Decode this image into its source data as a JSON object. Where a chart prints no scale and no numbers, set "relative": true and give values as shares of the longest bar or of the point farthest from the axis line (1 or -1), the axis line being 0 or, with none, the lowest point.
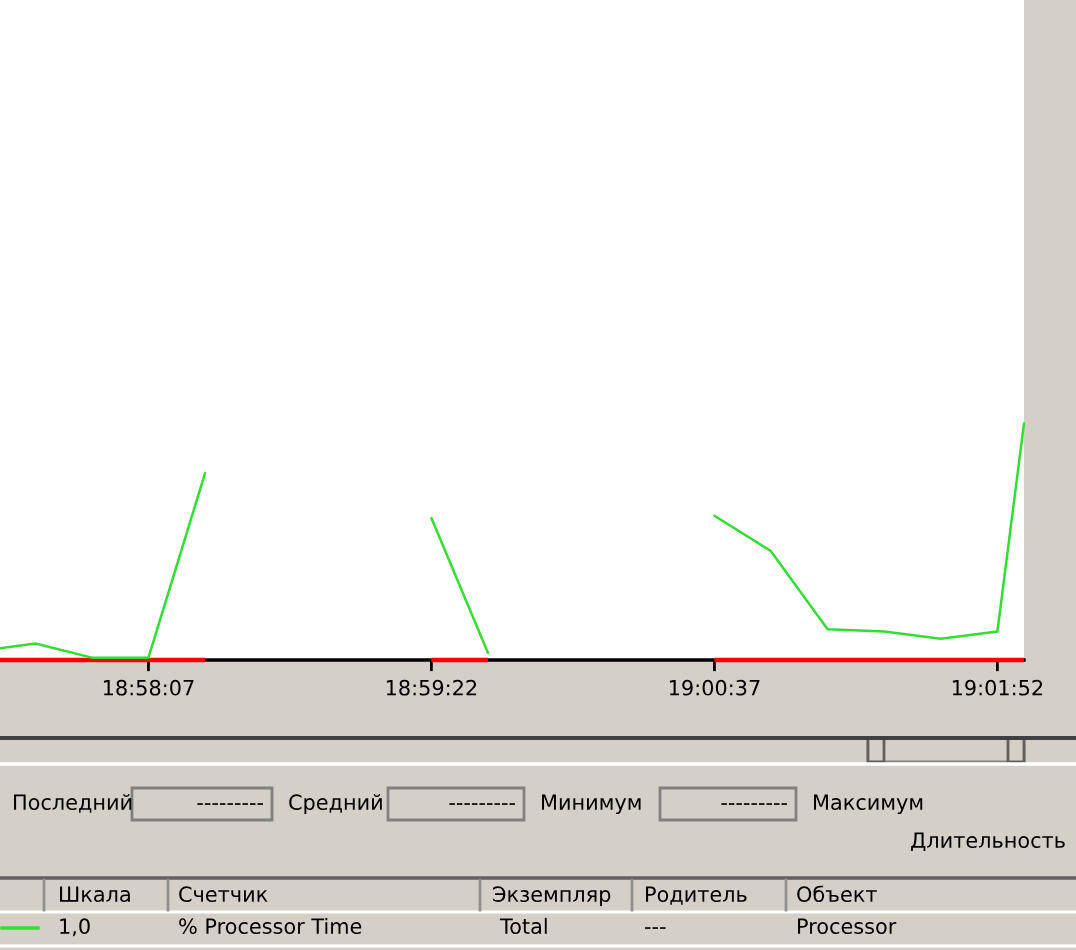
{
  "chart_data": {
    "type": "line",
    "x": [
      18.95768,
      18.96028,
      18.96444,
      18.96861,
      18.97278,
      18.97694,
      18.98111,
      18.98528,
      18.98944,
      18.99361,
      18.99778,
      19.00194,
      19.00611,
      19.01028,
      19.01444,
      19.01861,
      19.02278,
      19.02694,
      19.03111,
      19.03307
    ],
    "series": [
      {
        "name": "% Processor Time",
        "color": "#33dd33",
        "values": [
          0.05,
          0.07,
          0.01,
          0.01,
          0.79,
          null,
          null,
          null,
          0.6,
          0.03,
          null,
          null,
          null,
          0.61,
          0.46,
          0.13,
          0.12,
          0.09,
          0.12,
          1
        ]
      }
    ],
    "relative": true,
    "xlim": [
      18.95768,
      19.03307
    ],
    "xticks": [
      {
        "value": 18.96861,
        "label": "18:58:07"
      },
      {
        "value": 18.98944,
        "label": "18:59:22"
      },
      {
        "value": 19.01028,
        "label": "19:00:37"
      },
      {
        "value": 19.03111,
        "label": "19:01:52"
      }
    ],
    "legend": "bottom",
    "annotations": [
      "Последний",
      "---------",
      "Средний",
      "---------",
      "Минимум",
      "---------",
      "Максимум",
      "Длительность",
      "Шкала",
      "Счетчик",
      "Экземпляр",
      "Родитель",
      "Объект",
      "1,0",
      "Total",
      "---",
      "Processor"
    ]
  }
}
